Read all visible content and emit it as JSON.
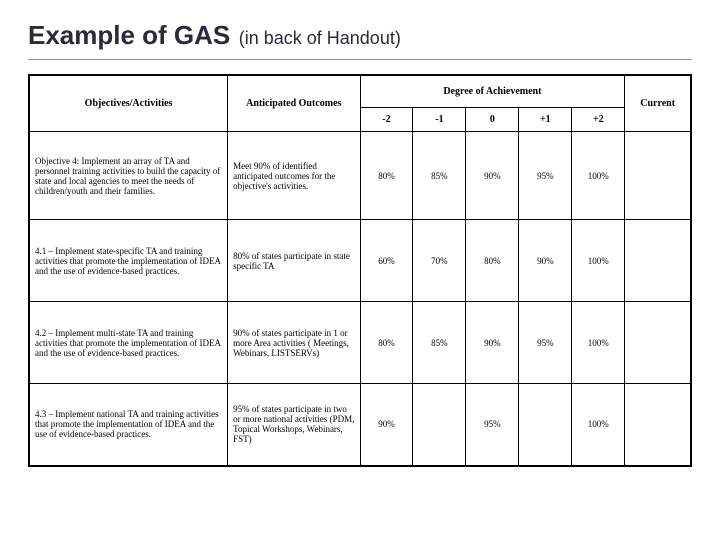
{
  "heading": {
    "main": "Example of GAS",
    "sub": "(in back of Handout)"
  },
  "table": {
    "type": "table",
    "headers": {
      "objectives": "Objectives/Activities",
      "outcomes": "Anticipated Outcomes",
      "degree": "Degree of Achievement",
      "current": "Current",
      "scale": [
        "-2",
        "-1",
        "0",
        "+1",
        "+2"
      ]
    },
    "rows": [
      {
        "objective": "Objective 4: Implement an array of TA and personnel training activities to build the capacity of state and local agencies to meet the needs of children/youth and their families.",
        "outcome": "Meet 90% of identified anticipated outcomes for the objective's activities.",
        "values": [
          "80%",
          "85%",
          "90%",
          "95%",
          "100%"
        ],
        "current": ""
      },
      {
        "objective": "4.1 – Implement state-specific TA and training activities that promote the implementation of IDEA and the use of evidence-based practices.",
        "outcome": "80% of states participate in state specific TA",
        "values": [
          "60%",
          "70%",
          "80%",
          "90%",
          "100%"
        ],
        "current": ""
      },
      {
        "objective": "4.2 – Implement multi-state TA and training activities that promote the implementation of IDEA and the use of evidence-based practices.",
        "outcome": "90% of states participate in 1 or more Area activities ( Meetings, Webinars, LISTSERVs)",
        "values": [
          "80%",
          "85%",
          "90%",
          "95%",
          "100%"
        ],
        "current": ""
      },
      {
        "objective": "4.3 – Implement national TA and training activities that promote the implementation of IDEA and the use of evidence-based practices.",
        "outcome": "95% of states participate in two or more national activities (PDM, Topical Workshops, Webinars, FST)",
        "values": [
          "90%",
          "",
          "95%",
          "",
          "100%"
        ],
        "current": ""
      }
    ]
  }
}
